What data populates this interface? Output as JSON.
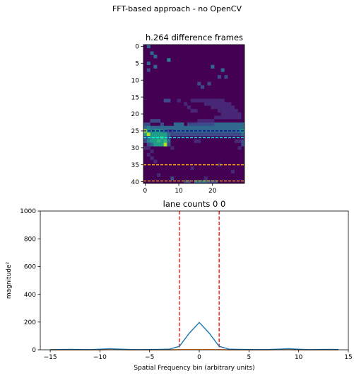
{
  "figure": {
    "suptitle": "FFT-based approach - no OpenCV"
  },
  "chart_data": [
    {
      "type": "heatmap",
      "title": "h.264 difference frames",
      "xlabel": "",
      "ylabel": "",
      "grid": false,
      "x_ticks": [
        0,
        10,
        20
      ],
      "y_ticks": [
        0,
        5,
        10,
        15,
        20,
        25,
        30,
        35,
        40
      ],
      "n_cols": 30,
      "n_rows": 41,
      "colormap": [
        "#440154",
        "#482777",
        "#3e4989",
        "#31688e",
        "#26828e",
        "#1f9e89",
        "#35b779",
        "#6ece58",
        "#b5de2b",
        "#fde725"
      ],
      "background_value": 0.0,
      "cells": [
        [
          0,
          1,
          0.3
        ],
        [
          2,
          2,
          0.3
        ],
        [
          3,
          3,
          0.3
        ],
        [
          5,
          1,
          0.3
        ],
        [
          4,
          7,
          0.4
        ],
        [
          6,
          3,
          0.3
        ],
        [
          7,
          1,
          0.2
        ],
        [
          6,
          20,
          0.3
        ],
        [
          7,
          23,
          0.3
        ],
        [
          9,
          22,
          0.25
        ],
        [
          9,
          24,
          0.25
        ],
        [
          11,
          16,
          0.2
        ],
        [
          11,
          19,
          0.2
        ],
        [
          12,
          17,
          0.2
        ],
        [
          16,
          6,
          0.2
        ],
        [
          16,
          7,
          0.2
        ],
        [
          16,
          10,
          0.15
        ],
        [
          17,
          12,
          0.15
        ],
        [
          18,
          13,
          0.15
        ],
        [
          19,
          14,
          0.15
        ],
        [
          19,
          15,
          0.15
        ],
        [
          16,
          14,
          0.15
        ],
        [
          16,
          15,
          0.15
        ],
        [
          16,
          16,
          0.15
        ],
        [
          16,
          17,
          0.15
        ],
        [
          16,
          18,
          0.15
        ],
        [
          16,
          19,
          0.15
        ],
        [
          16,
          20,
          0.15
        ],
        [
          16,
          21,
          0.15
        ],
        [
          16,
          22,
          0.15
        ],
        [
          16,
          23,
          0.15
        ],
        [
          17,
          18,
          0.15
        ],
        [
          17,
          19,
          0.15
        ],
        [
          17,
          20,
          0.15
        ],
        [
          17,
          21,
          0.15
        ],
        [
          17,
          22,
          0.15
        ],
        [
          17,
          23,
          0.15
        ],
        [
          17,
          24,
          0.15
        ],
        [
          17,
          25,
          0.15
        ],
        [
          18,
          20,
          0.15
        ],
        [
          18,
          21,
          0.15
        ],
        [
          18,
          22,
          0.15
        ],
        [
          18,
          23,
          0.15
        ],
        [
          18,
          24,
          0.15
        ],
        [
          18,
          25,
          0.15
        ],
        [
          18,
          26,
          0.15
        ],
        [
          19,
          22,
          0.15
        ],
        [
          19,
          23,
          0.15
        ],
        [
          19,
          24,
          0.15
        ],
        [
          19,
          25,
          0.15
        ],
        [
          19,
          26,
          0.15
        ],
        [
          19,
          27,
          0.15
        ],
        [
          20,
          23,
          0.15
        ],
        [
          20,
          24,
          0.15
        ],
        [
          20,
          25,
          0.15
        ],
        [
          20,
          26,
          0.15
        ],
        [
          20,
          27,
          0.15
        ],
        [
          20,
          28,
          0.15
        ],
        [
          21,
          21,
          0.15
        ],
        [
          21,
          22,
          0.15
        ],
        [
          21,
          23,
          0.15
        ],
        [
          21,
          24,
          0.15
        ],
        [
          21,
          25,
          0.15
        ],
        [
          21,
          26,
          0.15
        ],
        [
          21,
          27,
          0.15
        ],
        [
          21,
          28,
          0.15
        ],
        [
          22,
          2,
          0.2
        ],
        [
          22,
          3,
          0.2
        ],
        [
          22,
          4,
          0.2
        ],
        [
          22,
          16,
          0.15
        ],
        [
          22,
          17,
          0.15
        ],
        [
          22,
          18,
          0.15
        ],
        [
          22,
          19,
          0.15
        ],
        [
          22,
          20,
          0.15
        ],
        [
          23,
          0,
          0.2
        ],
        [
          23,
          1,
          0.2
        ],
        [
          23,
          5,
          0.2
        ],
        [
          23,
          9,
          0.3
        ],
        [
          23,
          10,
          0.3
        ],
        [
          23,
          11,
          0.3
        ],
        [
          23,
          13,
          0.25
        ],
        [
          23,
          14,
          0.25
        ],
        [
          23,
          15,
          0.25
        ],
        [
          23,
          16,
          0.25
        ],
        [
          23,
          17,
          0.25
        ],
        [
          23,
          18,
          0.25
        ],
        [
          23,
          19,
          0.25
        ],
        [
          23,
          20,
          0.25
        ],
        [
          23,
          21,
          0.3
        ],
        [
          23,
          22,
          0.3
        ],
        [
          23,
          23,
          0.3
        ],
        [
          23,
          24,
          0.3
        ],
        [
          23,
          25,
          0.3
        ],
        [
          23,
          26,
          0.3
        ],
        [
          23,
          27,
          0.3
        ],
        [
          23,
          28,
          0.3
        ],
        [
          23,
          29,
          0.3
        ],
        [
          24,
          0,
          0.3
        ],
        [
          24,
          1,
          0.4
        ],
        [
          24,
          2,
          0.3
        ],
        [
          24,
          3,
          0.3
        ],
        [
          24,
          4,
          0.3
        ],
        [
          24,
          5,
          0.3
        ],
        [
          24,
          6,
          0.3
        ],
        [
          24,
          7,
          0.3
        ],
        [
          24,
          8,
          0.3
        ],
        [
          24,
          9,
          0.3
        ],
        [
          24,
          10,
          0.3
        ],
        [
          24,
          11,
          0.3
        ],
        [
          24,
          12,
          0.3
        ],
        [
          24,
          13,
          0.3
        ],
        [
          24,
          14,
          0.3
        ],
        [
          24,
          15,
          0.3
        ],
        [
          24,
          16,
          0.3
        ],
        [
          24,
          17,
          0.3
        ],
        [
          24,
          18,
          0.3
        ],
        [
          24,
          19,
          0.3
        ],
        [
          24,
          20,
          0.3
        ],
        [
          24,
          21,
          0.3
        ],
        [
          24,
          22,
          0.3
        ],
        [
          24,
          23,
          0.3
        ],
        [
          24,
          24,
          0.3
        ],
        [
          24,
          25,
          0.3
        ],
        [
          24,
          26,
          0.3
        ],
        [
          24,
          27,
          0.3
        ],
        [
          24,
          28,
          0.3
        ],
        [
          24,
          29,
          0.3
        ],
        [
          25,
          0,
          0.85
        ],
        [
          25,
          1,
          0.55
        ],
        [
          25,
          2,
          0.4
        ],
        [
          25,
          3,
          0.55
        ],
        [
          25,
          4,
          0.5
        ],
        [
          25,
          5,
          0.45
        ],
        [
          25,
          6,
          0.3
        ],
        [
          25,
          7,
          0.25
        ],
        [
          25,
          8,
          0.25
        ],
        [
          25,
          9,
          0.3
        ],
        [
          25,
          10,
          0.3
        ],
        [
          25,
          11,
          0.3
        ],
        [
          25,
          12,
          0.3
        ],
        [
          25,
          13,
          0.3
        ],
        [
          25,
          14,
          0.3
        ],
        [
          25,
          15,
          0.3
        ],
        [
          25,
          16,
          0.3
        ],
        [
          25,
          17,
          0.3
        ],
        [
          25,
          18,
          0.3
        ],
        [
          25,
          19,
          0.3
        ],
        [
          25,
          20,
          0.3
        ],
        [
          25,
          21,
          0.3
        ],
        [
          25,
          22,
          0.3
        ],
        [
          25,
          23,
          0.3
        ],
        [
          25,
          24,
          0.3
        ],
        [
          25,
          25,
          0.3
        ],
        [
          25,
          26,
          0.35
        ],
        [
          25,
          27,
          0.35
        ],
        [
          25,
          28,
          0.4
        ],
        [
          25,
          29,
          0.6
        ],
        [
          26,
          0,
          0.5
        ],
        [
          26,
          1,
          0.85
        ],
        [
          26,
          2,
          0.55
        ],
        [
          26,
          3,
          0.6
        ],
        [
          26,
          4,
          0.55
        ],
        [
          26,
          5,
          0.55
        ],
        [
          26,
          6,
          0.5
        ],
        [
          26,
          7,
          0.3
        ],
        [
          26,
          8,
          0.25
        ],
        [
          26,
          9,
          0.25
        ],
        [
          26,
          10,
          0.2
        ],
        [
          26,
          11,
          0.2
        ],
        [
          26,
          12,
          0.2
        ],
        [
          26,
          13,
          0.2
        ],
        [
          26,
          14,
          0.2
        ],
        [
          26,
          15,
          0.2
        ],
        [
          26,
          16,
          0.2
        ],
        [
          26,
          17,
          0.2
        ],
        [
          26,
          18,
          0.2
        ],
        [
          26,
          19,
          0.2
        ],
        [
          26,
          20,
          0.2
        ],
        [
          26,
          21,
          0.2
        ],
        [
          26,
          22,
          0.2
        ],
        [
          26,
          23,
          0.2
        ],
        [
          26,
          24,
          0.2
        ],
        [
          26,
          25,
          0.2
        ],
        [
          26,
          26,
          0.2
        ],
        [
          26,
          27,
          0.2
        ],
        [
          26,
          28,
          0.25
        ],
        [
          26,
          29,
          0.3
        ],
        [
          27,
          0,
          0.25
        ],
        [
          27,
          1,
          0.35
        ],
        [
          27,
          2,
          0.55
        ],
        [
          27,
          3,
          0.6
        ],
        [
          27,
          4,
          0.6
        ],
        [
          27,
          5,
          0.65
        ],
        [
          27,
          6,
          0.6
        ],
        [
          27,
          7,
          0.25
        ],
        [
          28,
          0,
          0.2
        ],
        [
          28,
          1,
          0.4
        ],
        [
          28,
          2,
          0.55
        ],
        [
          28,
          3,
          0.6
        ],
        [
          28,
          4,
          0.65
        ],
        [
          28,
          5,
          0.6
        ],
        [
          28,
          6,
          0.65
        ],
        [
          28,
          7,
          0.3
        ],
        [
          28,
          15,
          0.15
        ],
        [
          28,
          16,
          0.15
        ],
        [
          28,
          27,
          0.15
        ],
        [
          28,
          28,
          0.15
        ],
        [
          28,
          29,
          0.2
        ],
        [
          29,
          1,
          0.25
        ],
        [
          29,
          2,
          0.3
        ],
        [
          29,
          3,
          0.55
        ],
        [
          29,
          4,
          0.6
        ],
        [
          29,
          5,
          0.55
        ],
        [
          29,
          6,
          0.9
        ],
        [
          29,
          7,
          0.25
        ],
        [
          29,
          29,
          0.2
        ],
        [
          30,
          0,
          0.15
        ],
        [
          30,
          1,
          0.15
        ],
        [
          30,
          8,
          0.15
        ],
        [
          30,
          28,
          0.15
        ],
        [
          31,
          2,
          0.15
        ],
        [
          32,
          1,
          0.15
        ],
        [
          33,
          2,
          0.15
        ],
        [
          34,
          3,
          0.15
        ],
        [
          35,
          22,
          0.15
        ],
        [
          36,
          14,
          0.15
        ],
        [
          37,
          26,
          0.15
        ],
        [
          38,
          4,
          0.15
        ],
        [
          39,
          18,
          0.15
        ],
        [
          39,
          8,
          0.2
        ],
        [
          40,
          12,
          0.2
        ],
        [
          40,
          13,
          0.2
        ],
        [
          40,
          15,
          0.3
        ],
        [
          40,
          16,
          0.3
        ],
        [
          40,
          17,
          0.3
        ],
        [
          40,
          18,
          0.3
        ],
        [
          40,
          19,
          0.2
        ],
        [
          40,
          20,
          0.2
        ],
        [
          40,
          21,
          0.2
        ]
      ],
      "hlines": [
        {
          "y": 25,
          "color": "#00008b",
          "style": "dashed"
        },
        {
          "y": 27,
          "color": "#00ffff",
          "style": "dashed"
        },
        {
          "y": 35,
          "color": "#ffa500",
          "style": "dashed"
        },
        {
          "y": 39.8,
          "color": "#ffa500",
          "style": "dashed"
        }
      ]
    },
    {
      "type": "line",
      "title": "lane counts 0 0",
      "xlabel": "Spatial Frequency bin (arbitrary units)",
      "ylabel": "magnitude²",
      "xlim": [
        -16,
        15
      ],
      "ylim": [
        0,
        1000
      ],
      "x_ticks": [
        -15,
        -10,
        -5,
        0,
        5,
        10,
        15
      ],
      "y_ticks": [
        0,
        200,
        400,
        600,
        800,
        1000
      ],
      "grid": false,
      "series": [
        {
          "color": "#1f77b4",
          "x": [
            -15,
            -14,
            -13,
            -12,
            -11,
            -10,
            -9,
            -8,
            -7,
            -6,
            -5,
            -4,
            -3,
            -2,
            -1,
            0,
            1,
            2,
            3,
            4,
            5,
            6,
            7,
            8,
            9,
            10,
            11,
            12,
            13,
            14
          ],
          "y": [
            1,
            2,
            3,
            2,
            1,
            4,
            8,
            5,
            2,
            1,
            2,
            3,
            5,
            25,
            120,
            197,
            120,
            25,
            5,
            3,
            2,
            1,
            2,
            5,
            8,
            4,
            1,
            2,
            3,
            2
          ]
        },
        {
          "color": "#ff7f0e",
          "x": [
            -15,
            -14,
            -13,
            -12,
            -11,
            -10,
            -9,
            -8,
            -7,
            -6,
            -5,
            -4,
            -3,
            -2,
            -1,
            0,
            1,
            2,
            3,
            4,
            5,
            6,
            7,
            8,
            9,
            10,
            11,
            12,
            13,
            14
          ],
          "y": [
            0,
            0,
            0,
            0,
            0,
            0,
            1,
            1,
            0,
            0,
            0,
            0,
            0,
            1,
            1,
            1,
            1,
            1,
            0,
            0,
            0,
            0,
            0,
            1,
            1,
            0,
            0,
            0,
            0,
            0
          ]
        }
      ],
      "vlines": [
        {
          "x": -2,
          "color": "#ff0000",
          "style": "dashed"
        },
        {
          "x": 2,
          "color": "#ff0000",
          "style": "dashed"
        }
      ]
    }
  ]
}
